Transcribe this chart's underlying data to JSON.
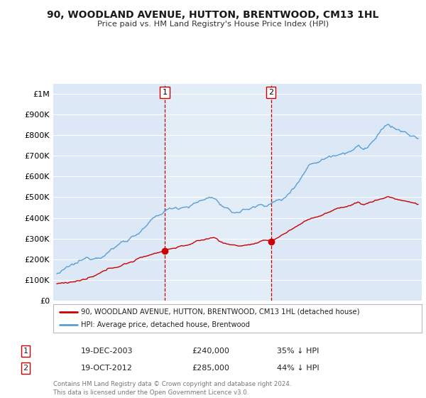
{
  "title": "90, WOODLAND AVENUE, HUTTON, BRENTWOOD, CM13 1HL",
  "subtitle": "Price paid vs. HM Land Registry's House Price Index (HPI)",
  "ylabel_ticks": [
    "£0",
    "£100K",
    "£200K",
    "£300K",
    "£400K",
    "£500K",
    "£600K",
    "£700K",
    "£800K",
    "£900K",
    "£1M"
  ],
  "ytick_vals": [
    0,
    100000,
    200000,
    300000,
    400000,
    500000,
    600000,
    700000,
    800000,
    900000,
    1000000
  ],
  "ylim": [
    0,
    1050000
  ],
  "hpi_color": "#5a9fd4",
  "price_color": "#cc0000",
  "marker_color": "#cc0000",
  "sale1_year": 2003.96,
  "sale1_price": 240000,
  "sale2_year": 2012.79,
  "sale2_price": 285000,
  "legend_house": "90, WOODLAND AVENUE, HUTTON, BRENTWOOD, CM13 1HL (detached house)",
  "legend_hpi": "HPI: Average price, detached house, Brentwood",
  "sale1_label": "1",
  "sale1_date": "19-DEC-2003",
  "sale1_price_str": "£240,000",
  "sale1_pct": "35% ↓ HPI",
  "sale2_label": "2",
  "sale2_date": "19-OCT-2012",
  "sale2_price_str": "£285,000",
  "sale2_pct": "44% ↓ HPI",
  "footer": "Contains HM Land Registry data © Crown copyright and database right 2024.\nThis data is licensed under the Open Government Licence v3.0.",
  "xmin": 1994.7,
  "xmax": 2025.3,
  "background_plot": "#dce8f5",
  "highlight_bg": "#e8f1fa",
  "background_fig": "#ffffff",
  "grid_color": "#ffffff",
  "vline_color": "#cc0000",
  "vline_style": "--"
}
